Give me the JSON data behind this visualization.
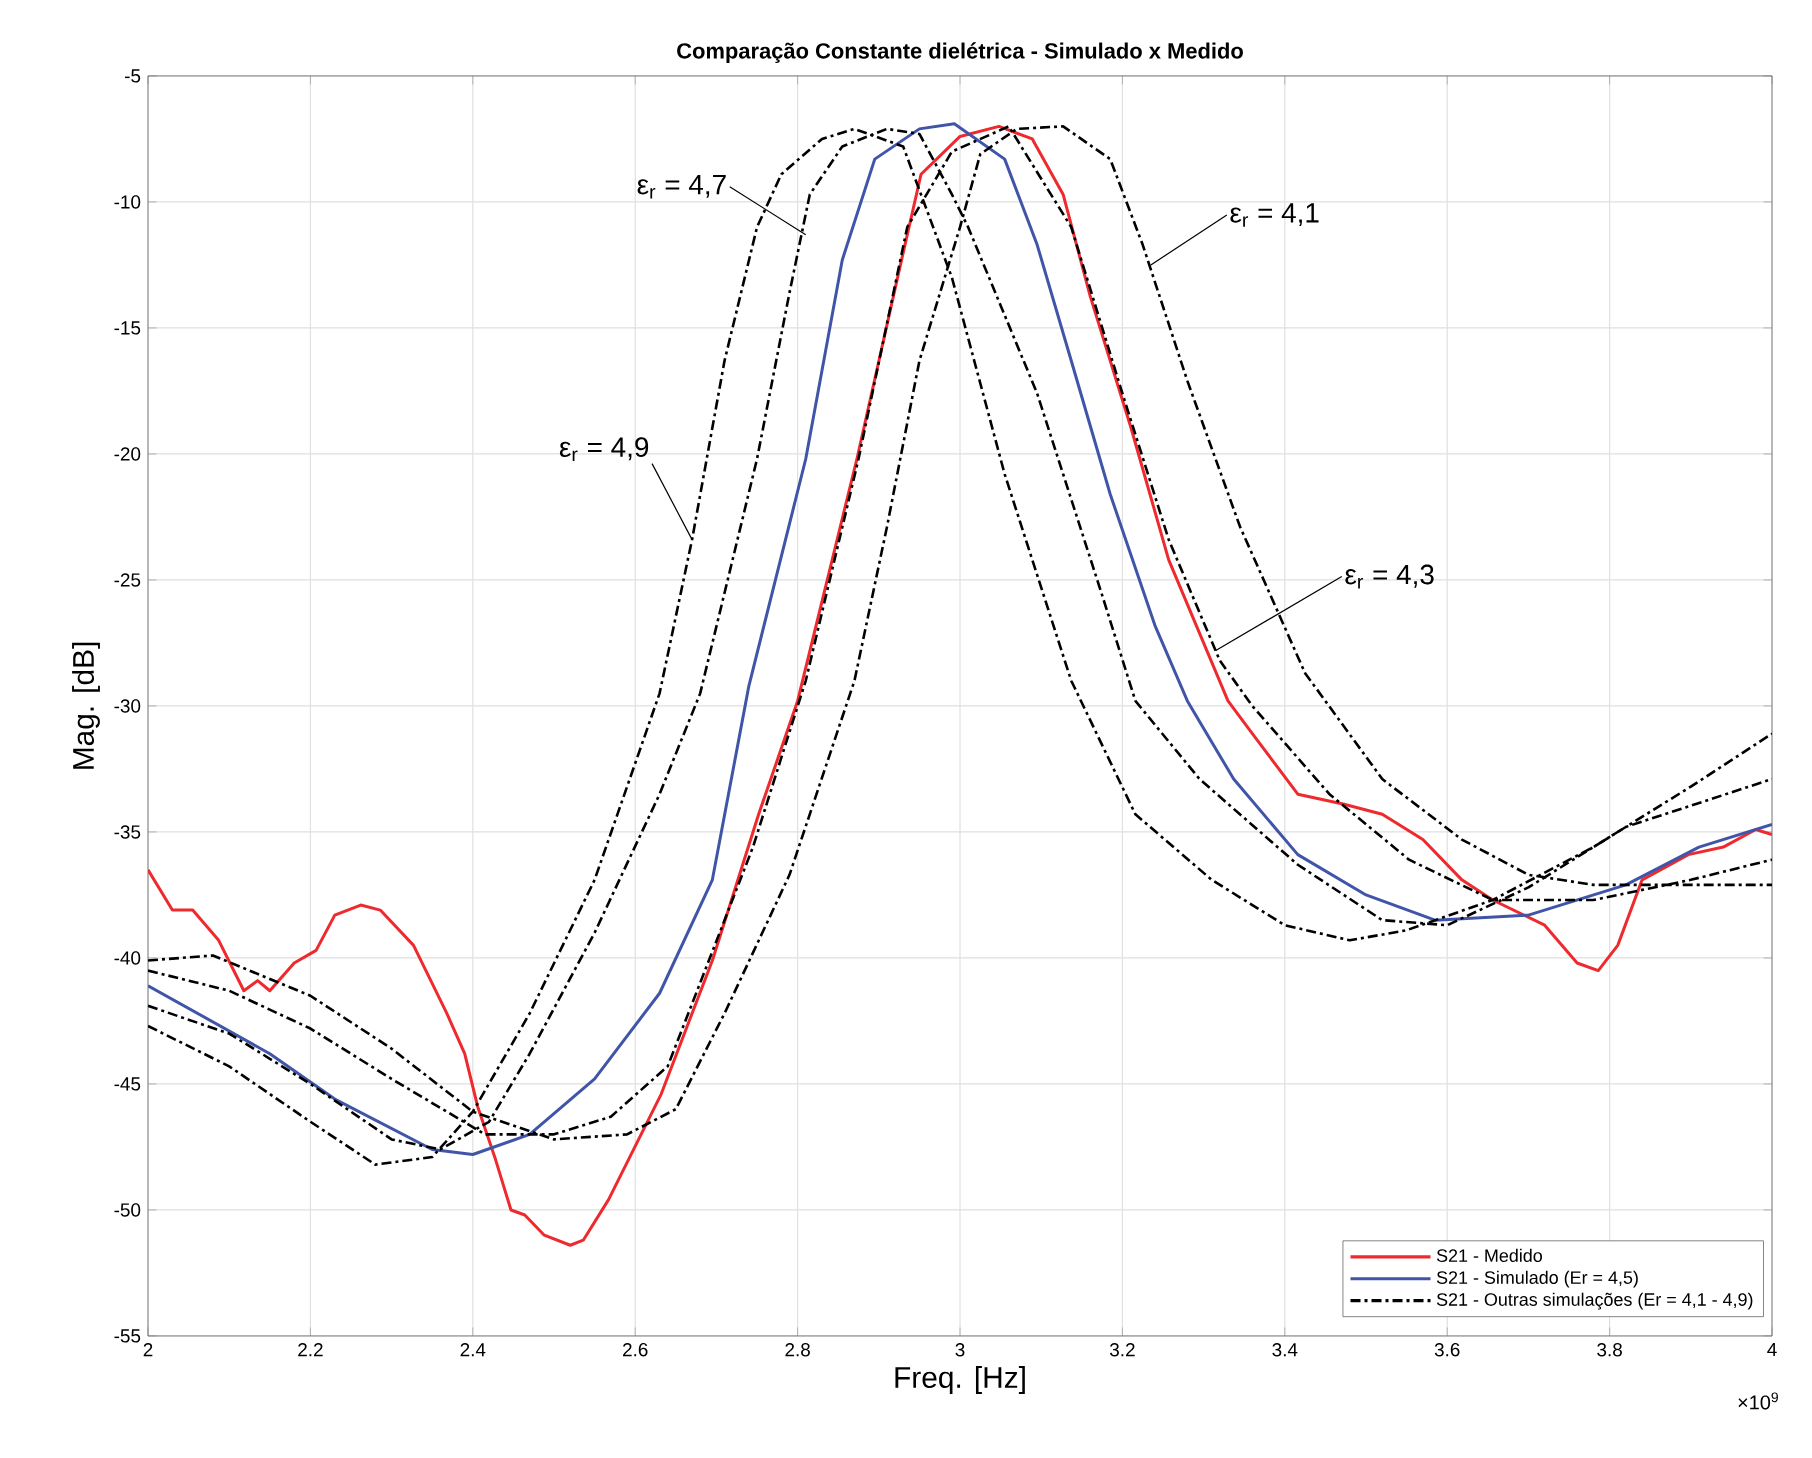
{
  "chart_data": {
    "type": "line",
    "title": "Comparação Constante dielétrica - Simulado x Medido",
    "xlabel": "Freq. [Hz]",
    "ylabel": "Mag. [dB]",
    "xlim": [
      2,
      4
    ],
    "xticks": [
      2,
      2.2,
      2.4,
      2.6,
      2.8,
      3,
      3.2,
      3.4,
      3.6,
      3.8,
      4
    ],
    "ylim": [
      -55,
      -5
    ],
    "yticks": [
      -55,
      -50,
      -45,
      -40,
      -35,
      -30,
      -25,
      -20,
      -15,
      -10,
      -5
    ],
    "grid": true,
    "legend": "bottom right",
    "series": [
      {
        "name": "S21 - Medido",
        "color": "#ee2a2f",
        "line_style": "solid",
        "x": [
          2.0,
          2.03,
          2.055,
          2.087,
          2.118,
          2.135,
          2.15,
          2.18,
          2.207,
          2.23,
          2.262,
          2.286,
          2.327,
          2.368,
          2.39,
          2.406,
          2.428,
          2.447,
          2.464,
          2.488,
          2.52,
          2.536,
          2.567,
          2.632,
          2.695,
          2.752,
          2.8,
          2.873,
          2.928,
          2.952,
          3.0,
          3.048,
          3.089,
          3.127,
          3.16,
          3.21,
          3.257,
          3.33,
          3.36,
          3.416,
          3.473,
          3.52,
          3.57,
          3.618,
          3.656,
          3.72,
          3.76,
          3.786,
          3.81,
          3.84,
          3.897,
          3.94,
          3.98,
          4.0
        ],
        "values": [
          -36.5,
          -38.1,
          -38.1,
          -39.3,
          -41.3,
          -40.9,
          -41.3,
          -40.2,
          -39.7,
          -38.3,
          -37.9,
          -38.1,
          -39.5,
          -42.2,
          -43.8,
          -45.9,
          -48.0,
          -50.0,
          -50.2,
          -51.0,
          -51.4,
          -51.2,
          -49.6,
          -45.4,
          -40.1,
          -34.3,
          -29.8,
          -20.2,
          -12.3,
          -8.9,
          -7.4,
          -7.0,
          -7.5,
          -9.7,
          -13.7,
          -18.9,
          -24.2,
          -29.8,
          -31.1,
          -33.5,
          -33.9,
          -34.3,
          -35.3,
          -36.9,
          -37.7,
          -38.7,
          -40.2,
          -40.5,
          -39.5,
          -36.9,
          -35.9,
          -35.6,
          -34.9,
          -35.1
        ]
      },
      {
        "name": "S21 - Simulado (Er = 4,5)",
        "color": "#4055a8",
        "line_style": "solid",
        "x": [
          2.0,
          2.15,
          2.23,
          2.35,
          2.4,
          2.47,
          2.55,
          2.63,
          2.695,
          2.74,
          2.81,
          2.855,
          2.895,
          2.95,
          2.993,
          3.055,
          3.095,
          3.137,
          3.185,
          3.24,
          3.28,
          3.337,
          3.416,
          3.5,
          3.585,
          3.7,
          3.82,
          3.91,
          4.0
        ],
        "values": [
          -41.1,
          -43.8,
          -45.6,
          -47.6,
          -47.8,
          -47.0,
          -44.8,
          -41.4,
          -36.9,
          -29.2,
          -20.2,
          -12.3,
          -8.3,
          -7.1,
          -6.9,
          -8.3,
          -11.7,
          -16.3,
          -21.6,
          -26.8,
          -29.8,
          -32.9,
          -35.9,
          -37.5,
          -38.5,
          -38.3,
          -37.1,
          -35.6,
          -34.7
        ]
      },
      {
        "name": "S21 - Outras simulações (Er = 4,1 - 4,9)",
        "color": "#000000",
        "line_style": "dashdot",
        "x": [
          2.0,
          2.08,
          2.2,
          2.3,
          2.4,
          2.5,
          2.59,
          2.65,
          2.71,
          2.79,
          2.87,
          2.91,
          2.95,
          3.0,
          3.025,
          3.07,
          3.127,
          3.185,
          3.225,
          3.28,
          3.345,
          3.425,
          3.52,
          3.618,
          3.7,
          3.78,
          3.9,
          4.0
        ],
        "values": [
          -40.1,
          -39.9,
          -41.5,
          -43.6,
          -46.1,
          -47.2,
          -47.0,
          -46.0,
          -42.2,
          -36.7,
          -29.0,
          -22.9,
          -16.3,
          -11.0,
          -8.1,
          -7.1,
          -7.0,
          -8.3,
          -11.7,
          -17.1,
          -22.9,
          -28.7,
          -32.9,
          -35.3,
          -36.7,
          -37.1,
          -37.1,
          -37.1
        ]
      },
      {
        "color": "#000000",
        "line_style": "dashdot",
        "x": [
          2.0,
          2.1,
          2.2,
          2.3,
          2.415,
          2.5,
          2.57,
          2.64,
          2.745,
          2.81,
          2.875,
          2.935,
          2.99,
          3.06,
          3.137,
          3.2,
          3.257,
          3.32,
          3.36,
          3.455,
          3.553,
          3.656,
          3.78,
          3.9,
          4.0
        ],
        "values": [
          -40.5,
          -41.3,
          -42.8,
          -44.8,
          -47.0,
          -47.0,
          -46.3,
          -44.3,
          -35.6,
          -29.0,
          -20.2,
          -11.0,
          -8.0,
          -7.0,
          -11.0,
          -17.6,
          -23.4,
          -28.2,
          -30.0,
          -33.5,
          -36.1,
          -37.7,
          -37.7,
          -36.9,
          -36.1
        ]
      },
      {
        "color": "#000000",
        "line_style": "dashdot",
        "x": [
          2.0,
          2.1,
          2.2,
          2.3,
          2.36,
          2.42,
          2.47,
          2.55,
          2.63,
          2.68,
          2.75,
          2.79,
          2.815,
          2.855,
          2.91,
          2.95,
          2.99,
          3.01,
          3.095,
          3.175,
          3.216,
          3.295,
          3.416,
          3.52,
          3.6,
          3.7,
          3.82,
          4.0
        ],
        "values": [
          -41.9,
          -43.0,
          -45.0,
          -47.2,
          -47.6,
          -46.5,
          -43.8,
          -39.0,
          -33.5,
          -29.5,
          -20.2,
          -13.6,
          -9.7,
          -7.8,
          -7.1,
          -7.3,
          -9.7,
          -11.0,
          -17.6,
          -25.6,
          -29.8,
          -32.9,
          -36.3,
          -38.5,
          -38.7,
          -37.2,
          -34.8,
          -32.9
        ]
      },
      {
        "color": "#000000",
        "line_style": "dashdot",
        "x": [
          2.0,
          2.1,
          2.2,
          2.28,
          2.35,
          2.4,
          2.47,
          2.55,
          2.63,
          2.67,
          2.71,
          2.75,
          2.78,
          2.83,
          2.87,
          2.93,
          2.99,
          3.055,
          3.137,
          3.216,
          3.31,
          3.4,
          3.48,
          3.55,
          3.656,
          3.78,
          3.9,
          4.0
        ],
        "values": [
          -42.7,
          -44.3,
          -46.5,
          -48.2,
          -47.9,
          -46.1,
          -42.2,
          -36.9,
          -29.5,
          -23.4,
          -16.3,
          -11.0,
          -8.9,
          -7.5,
          -7.1,
          -7.8,
          -13.0,
          -20.8,
          -29.0,
          -34.3,
          -36.9,
          -38.7,
          -39.3,
          -38.9,
          -37.7,
          -35.6,
          -33.2,
          -31.1
        ]
      }
    ],
    "annotations": [
      {
        "text": "ε$_{r}$ = 4,7",
        "x": 2.81,
        "y": -11.3
      },
      {
        "text": "ε$_{r}$ = 4,9",
        "x": 2.67,
        "y": -23.4
      },
      {
        "text": "ε$_{r}$ = 4,1",
        "x": 3.235,
        "y": -12.5
      },
      {
        "text": "ε$_{r}$ = 4,3",
        "x": 3.315,
        "y": -27.8
      },
      "×10$^{9}$"
    ]
  }
}
